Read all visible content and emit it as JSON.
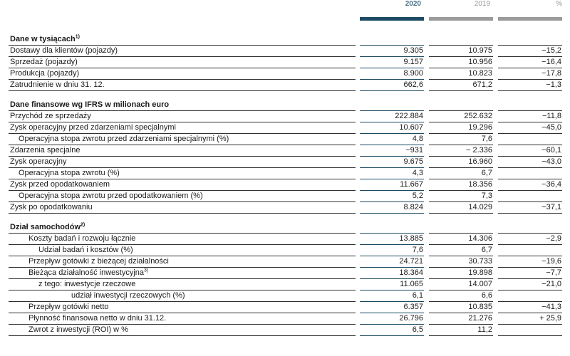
{
  "headers": {
    "y2020": "2020",
    "y2019": "2019",
    "pct": "%"
  },
  "rows": [
    {
      "label": "Dane w tysiącach",
      "sup": "1)",
      "type": "section"
    },
    {
      "label": "Dostawy dla klientów (pojazdy)",
      "v2020": "9.305",
      "v2019": "10.975",
      "pct": "−15,2"
    },
    {
      "label": "Sprzedaż (pojazdy)",
      "v2020": "9.157",
      "v2019": "10.956",
      "pct": "−16,4"
    },
    {
      "label": "Produkcja (pojazdy)",
      "v2020": "8.900",
      "v2019": "10.823",
      "pct": "−17,8"
    },
    {
      "label": "Zatrudnienie w dniu 31. 12.",
      "v2020": "662,6",
      "v2019": "671,2",
      "pct": "−1,3"
    },
    {
      "type": "spacer"
    },
    {
      "label": "Dane finansowe wg IFRS w milionach euro",
      "type": "section"
    },
    {
      "label": "Przychód ze sprzedaży",
      "v2020": "222.884",
      "v2019": "252.632",
      "pct": "−11,8"
    },
    {
      "label": "Zysk operacyjny przed zdarzeniami specjalnymi",
      "v2020": "10.607",
      "v2019": "19.296",
      "pct": "−45,0"
    },
    {
      "label": "Operacyjna stopa zwrotu przed zdarzeniami specjalnymi (%)",
      "indent": 1,
      "v2020": "4,8",
      "v2019": "7,6",
      "pct": ""
    },
    {
      "label": "Zdarzenia specjalne",
      "v2020": "−931",
      "v2019": "− 2.336",
      "pct": "−60,1"
    },
    {
      "label": "Zysk operacyjny",
      "v2020": "9.675",
      "v2019": "16.960",
      "pct": "−43,0"
    },
    {
      "label": "Operacyjna stopa zwrotu (%)",
      "indent": 1,
      "v2020": "4,3",
      "v2019": "6,7",
      "pct": ""
    },
    {
      "label": "Zysk przed opodatkowaniem",
      "v2020": "11.667",
      "v2019": "18.356",
      "pct": "−36,4"
    },
    {
      "label": "Operacyjna stopa zwrotu przed opodatkowaniem (%)",
      "indent": 1,
      "v2020": "5,2",
      "v2019": "7,3",
      "pct": ""
    },
    {
      "label": "Zysk po opodatkowaniu",
      "v2020": "8.824",
      "v2019": "14.029",
      "pct": "−37,1"
    },
    {
      "type": "spacer"
    },
    {
      "label": "Dział samochodów",
      "sup": "2)",
      "type": "section"
    },
    {
      "label": "Koszty badań i rozwoju łącznie",
      "indent": 2,
      "v2020": "13.885",
      "v2019": "14.306",
      "pct": "−2,9"
    },
    {
      "label": "Udział badań i kosztów (%)",
      "indent": 3,
      "v2020": "7,6",
      "v2019": "6,7",
      "pct": ""
    },
    {
      "label": "Przepływ gotówki z bieżącej działalności",
      "indent": 2,
      "v2020": "24.721",
      "v2019": "30.733",
      "pct": "−19,6"
    },
    {
      "label": "Bieżąca działalność inwestycyjna",
      "sup": "3)",
      "indent": 2,
      "v2020": "18.364",
      "v2019": "19.898",
      "pct": "−7,7"
    },
    {
      "label": "z tego: inwestycje rzeczowe",
      "indent": 3,
      "v2020": "11.065",
      "v2019": "14.007",
      "pct": "−21,0"
    },
    {
      "label": "udział inwestycji rzeczowych (%)",
      "indent": 4,
      "v2020": "6,1",
      "v2019": "6,6",
      "pct": ""
    },
    {
      "label": "Przepływ gotówki netto",
      "indent": 2,
      "v2020": "6.357",
      "v2019": "10.835",
      "pct": "−41,3"
    },
    {
      "label": "Płynność finansowa netto w dniu 31.12.",
      "indent": 2,
      "v2020": "26.796",
      "v2019": "21.276",
      "pct": "+ 25,9"
    },
    {
      "label": "Zwrot z inwestycji (ROI) w %",
      "indent": 2,
      "v2020": "6,5",
      "v2019": "11,2",
      "pct": ""
    }
  ]
}
